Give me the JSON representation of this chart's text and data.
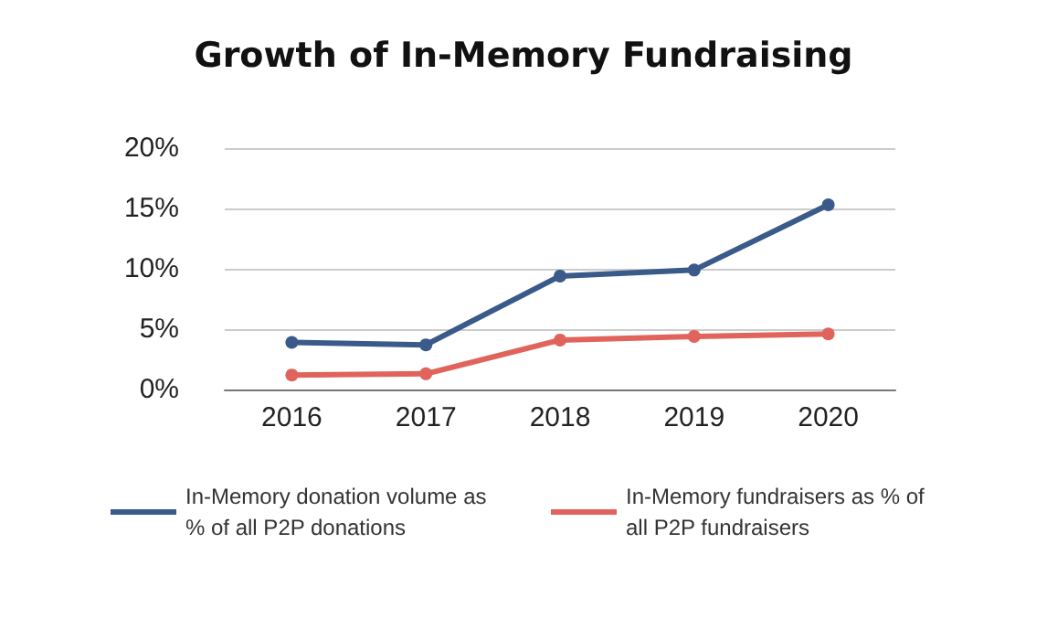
{
  "chart_data": {
    "type": "line",
    "title": "Growth of In-Memory Fundraising",
    "categories": [
      "2016",
      "2017",
      "2018",
      "2019",
      "2020"
    ],
    "series": [
      {
        "name": "In-Memory donation volume as % of all P2P donations",
        "color": "#3a5a8a",
        "values": [
          3.9,
          3.7,
          9.4,
          9.9,
          15.3
        ]
      },
      {
        "name": "In-Memory fundraisers as % of all P2P fundraisers",
        "color": "#e0645c",
        "values": [
          1.2,
          1.3,
          4.1,
          4.4,
          4.6
        ]
      }
    ],
    "ylim": [
      0,
      20
    ],
    "yticks": [
      {
        "value": 0,
        "label": "0%"
      },
      {
        "value": 5,
        "label": "5%"
      },
      {
        "value": 10,
        "label": "10%"
      },
      {
        "value": 15,
        "label": "15%"
      },
      {
        "value": 20,
        "label": "20%"
      }
    ],
    "grid": "y",
    "legend": "bottom",
    "marker": "circle",
    "line_style": "solid"
  }
}
